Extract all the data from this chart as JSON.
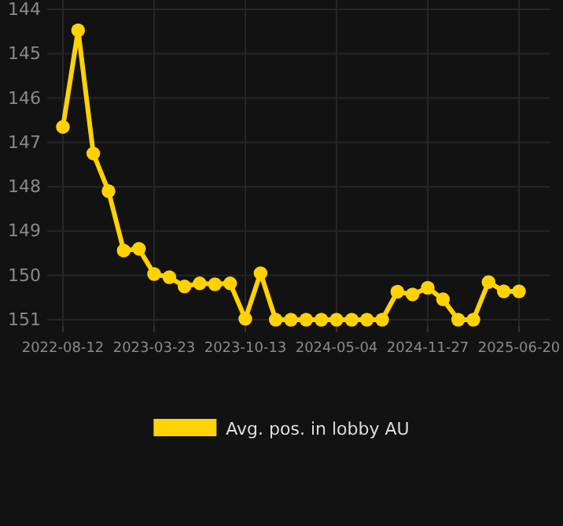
{
  "chart_data": {
    "type": "line",
    "categories": [
      "2022-08-12",
      null,
      null,
      null,
      null,
      null,
      "2023-03-23",
      null,
      null,
      null,
      null,
      null,
      "2023-10-13",
      null,
      null,
      null,
      null,
      null,
      "2024-05-04",
      null,
      null,
      null,
      null,
      null,
      "2024-11-27",
      null,
      null,
      null,
      null,
      null,
      "2025-06-20"
    ],
    "series": [
      {
        "name": "Avg. pos. in lobby AU",
        "color": "#ffd200",
        "values": [
          146.65,
          144.47,
          147.25,
          148.1,
          149.44,
          149.4,
          149.97,
          150.04,
          150.25,
          150.18,
          150.2,
          150.18,
          150.98,
          149.95,
          151,
          151,
          151,
          151,
          151,
          151,
          151,
          151,
          150.37,
          150.43,
          150.28,
          150.54,
          151,
          151,
          150.15,
          150.36,
          150.36
        ]
      }
    ],
    "ylim": [
      151,
      144
    ],
    "yticks": [
      144,
      145,
      146,
      147,
      148,
      149,
      150,
      151
    ],
    "grid": true,
    "legend": "bottom",
    "marker": "circle",
    "line_style": "solid"
  }
}
